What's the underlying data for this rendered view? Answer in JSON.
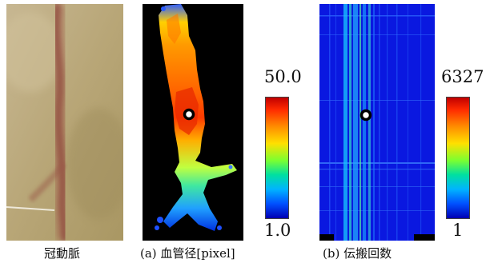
{
  "figure": {
    "colorbar_a": {
      "max_label": "50.0",
      "min_label": "1.0"
    },
    "colorbar_b": {
      "max_label": "6327",
      "min_label": "1"
    },
    "captions": {
      "photo": "冠動脈",
      "a": "(a) 血管径[pixel]",
      "b": "(b) 伝搬回数"
    },
    "colors": {
      "background": "#ffffff",
      "map_a_background": "#000000",
      "map_b_background": "#0a14d8",
      "marker": "#000000"
    }
  }
}
